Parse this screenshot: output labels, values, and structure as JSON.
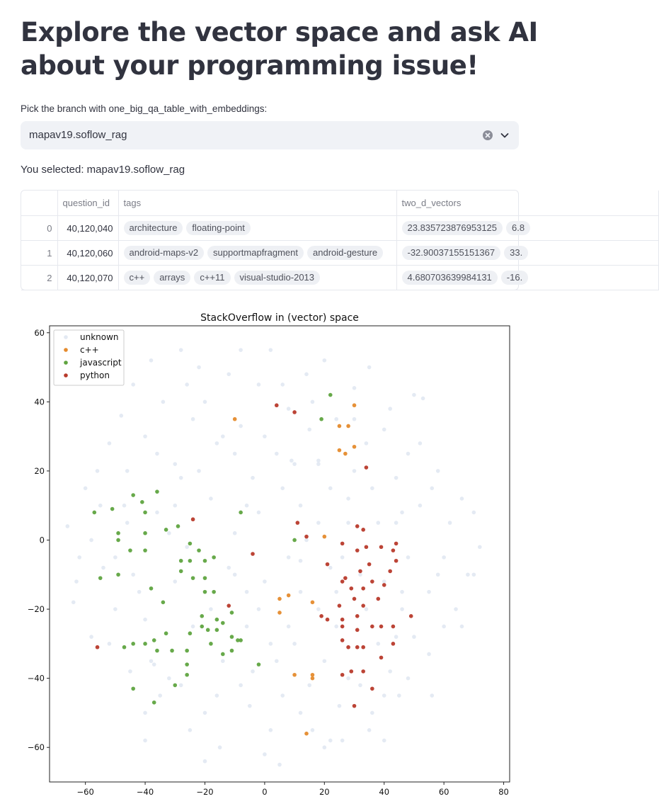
{
  "page": {
    "title": "Explore the vector space and ask AI about your programming issue!",
    "select_label": "Pick the branch with one_big_qa_table_with_embeddings:",
    "select_value": "mapav19.soflow_rag",
    "selected_text": "You selected: mapav19.soflow_rag"
  },
  "icons": {
    "clear": "clear-circle-icon",
    "dropdown": "chevron-down-icon"
  },
  "table": {
    "columns": [
      "",
      "question_id",
      "tags",
      "two_d_vectors"
    ],
    "rows": [
      {
        "index": "0",
        "question_id": "40,120,040",
        "tags": [
          "architecture",
          "floating-point"
        ],
        "vectors": [
          "23.835723876953125",
          "6.8"
        ]
      },
      {
        "index": "1",
        "question_id": "40,120,060",
        "tags": [
          "android-maps-v2",
          "supportmapfragment",
          "android-gesture"
        ],
        "vectors": [
          "-32.90037155151367",
          "33."
        ]
      },
      {
        "index": "2",
        "question_id": "40,120,070",
        "tags": [
          "c++",
          "arrays",
          "c++11",
          "visual-studio-2013"
        ],
        "vectors": [
          "4.680703639984131",
          "-16."
        ]
      }
    ]
  },
  "chart_data": {
    "type": "scatter",
    "title": "StackOverflow in (vector) space",
    "xlim": [
      -72,
      82
    ],
    "ylim": [
      -70,
      62
    ],
    "xticks": [
      -60,
      -40,
      -20,
      0,
      20,
      40,
      60,
      80
    ],
    "yticks": [
      -60,
      -40,
      -20,
      0,
      20,
      40,
      60
    ],
    "grid": false,
    "legend": "top-left",
    "series": [
      {
        "name": "unknown",
        "color": "#e3e9f2",
        "points": [
          [
            -66,
            4
          ],
          [
            -63,
            -12
          ],
          [
            -60,
            15
          ],
          [
            -58,
            -28
          ],
          [
            -55,
            10
          ],
          [
            -52,
            28
          ],
          [
            -50,
            -5
          ],
          [
            -48,
            36
          ],
          [
            -46,
            20
          ],
          [
            -44,
            45
          ],
          [
            -42,
            -15
          ],
          [
            -40,
            30
          ],
          [
            -38,
            52
          ],
          [
            -36,
            8
          ],
          [
            -34,
            40
          ],
          [
            -32,
            -40
          ],
          [
            -30,
            22
          ],
          [
            -28,
            55
          ],
          [
            -26,
            -2
          ],
          [
            -24,
            35
          ],
          [
            -22,
            50
          ],
          [
            -20,
            -50
          ],
          [
            -18,
            12
          ],
          [
            -16,
            28
          ],
          [
            -14,
            -35
          ],
          [
            -12,
            48
          ],
          [
            -10,
            2
          ],
          [
            -8,
            33
          ],
          [
            -6,
            -25
          ],
          [
            -4,
            18
          ],
          [
            -2,
            45
          ],
          [
            0,
            -12
          ],
          [
            2,
            55
          ],
          [
            4,
            25
          ],
          [
            6,
            -45
          ],
          [
            8,
            38
          ],
          [
            10,
            -30
          ],
          [
            12,
            10
          ],
          [
            14,
            48
          ],
          [
            16,
            -55
          ],
          [
            18,
            22
          ],
          [
            20,
            52
          ],
          [
            22,
            -8
          ],
          [
            24,
            35
          ],
          [
            26,
            -58
          ],
          [
            28,
            12
          ],
          [
            30,
            44
          ],
          [
            32,
            -10
          ],
          [
            34,
            28
          ],
          [
            36,
            -50
          ],
          [
            38,
            5
          ],
          [
            40,
            32
          ],
          [
            42,
            -38
          ],
          [
            44,
            18
          ],
          [
            46,
            -20
          ],
          [
            48,
            25
          ],
          [
            50,
            -28
          ],
          [
            52,
            10
          ],
          [
            55,
            -15
          ],
          [
            58,
            20
          ],
          [
            60,
            -5
          ],
          [
            62,
            5
          ],
          [
            64,
            -20
          ],
          [
            66,
            12
          ],
          [
            68,
            -10
          ],
          [
            70,
            8
          ],
          [
            72,
            -2
          ],
          [
            -50,
            -20
          ],
          [
            -45,
            -38
          ],
          [
            -35,
            -45
          ],
          [
            -25,
            -55
          ],
          [
            -15,
            -60
          ],
          [
            -5,
            -48
          ],
          [
            5,
            -65
          ],
          [
            15,
            -42
          ],
          [
            25,
            -48
          ],
          [
            35,
            -55
          ],
          [
            45,
            -45
          ],
          [
            55,
            -33
          ],
          [
            -38,
            -35
          ],
          [
            -28,
            18
          ],
          [
            -12,
            -8
          ],
          [
            8,
            -5
          ],
          [
            18,
            -20
          ],
          [
            28,
            5
          ],
          [
            38,
            -30
          ],
          [
            48,
            -5
          ],
          [
            -62,
            -5
          ],
          [
            -56,
            20
          ],
          [
            -44,
            -10
          ],
          [
            -32,
            2
          ],
          [
            -20,
            40
          ],
          [
            -8,
            55
          ],
          [
            6,
            45
          ],
          [
            16,
            40
          ],
          [
            30,
            35
          ],
          [
            42,
            38
          ],
          [
            50,
            42
          ],
          [
            -40,
            -23
          ],
          [
            0,
            30
          ],
          [
            12,
            -15
          ],
          [
            24,
            -25
          ],
          [
            36,
            15
          ],
          [
            -16,
            -45
          ],
          [
            4,
            -35
          ],
          [
            20,
            -35
          ],
          [
            32,
            -42
          ],
          [
            -24,
            -25
          ],
          [
            -6,
            10
          ],
          [
            14,
            0
          ],
          [
            -2,
            -20
          ],
          [
            10,
            22
          ],
          [
            22,
            15
          ],
          [
            40,
            -12
          ],
          [
            52,
            28
          ],
          [
            -58,
            0
          ],
          [
            -46,
            5
          ],
          [
            -30,
            -12
          ],
          [
            -18,
            -20
          ],
          [
            -4,
            -38
          ],
          [
            2,
            -55
          ],
          [
            26,
            -5
          ],
          [
            46,
            8
          ],
          [
            56,
            15
          ],
          [
            60,
            -25
          ],
          [
            -36,
            25
          ],
          [
            -26,
            45
          ],
          [
            -10,
            25
          ],
          [
            6,
            15
          ],
          [
            18,
            5
          ],
          [
            34,
            -20
          ],
          [
            44,
            -28
          ],
          [
            53,
            41
          ],
          [
            -37,
            -36
          ],
          [
            9,
            23
          ],
          [
            12,
            -6
          ],
          [
            18,
            23
          ],
          [
            -14,
            30
          ],
          [
            -2,
            8
          ],
          [
            30,
            20
          ],
          [
            44,
            5
          ],
          [
            58,
            -10
          ],
          [
            -54,
            -8
          ],
          [
            -22,
            20
          ],
          [
            2,
            -30
          ],
          [
            28,
            -40
          ],
          [
            48,
            -40
          ],
          [
            66,
            -25
          ],
          [
            -64,
            -18
          ],
          [
            -52,
            -30
          ],
          [
            -40,
            -50
          ],
          [
            -28,
            -42
          ],
          [
            -8,
            -42
          ],
          [
            12,
            -50
          ],
          [
            22,
            -58
          ],
          [
            40,
            -45
          ],
          [
            56,
            -45
          ],
          [
            -47,
            10
          ],
          [
            -10,
            -10
          ],
          [
            8,
            -25
          ],
          [
            24,
            -15
          ],
          [
            46,
            -15
          ],
          [
            70,
            -10
          ],
          [
            -30,
            10
          ],
          [
            -6,
            -15
          ],
          [
            15,
            32
          ],
          [
            35,
            50
          ],
          [
            -40,
            -58
          ],
          [
            -20,
            -64
          ],
          [
            0,
            -62
          ],
          [
            20,
            -60
          ],
          [
            40,
            -58
          ]
        ]
      },
      {
        "name": "c++",
        "color": "#e58b2d",
        "points": [
          [
            -10,
            35
          ],
          [
            25,
            33
          ],
          [
            28,
            33
          ],
          [
            30,
            39
          ],
          [
            25,
            26
          ],
          [
            27,
            25
          ],
          [
            30,
            27
          ],
          [
            20,
            1
          ],
          [
            5,
            -17
          ],
          [
            8,
            -16
          ],
          [
            5,
            -21
          ],
          [
            16,
            -18
          ],
          [
            10,
            -39
          ],
          [
            16,
            -39
          ],
          [
            16,
            -40
          ],
          [
            14,
            -56
          ]
        ]
      },
      {
        "name": "javascript",
        "color": "#5fa440",
        "points": [
          [
            -57,
            8
          ],
          [
            -51,
            9
          ],
          [
            -44,
            13
          ],
          [
            -41,
            11
          ],
          [
            -36,
            14
          ],
          [
            -40,
            8
          ],
          [
            -49,
            2
          ],
          [
            -49,
            0
          ],
          [
            -45,
            -3
          ],
          [
            -40,
            -3
          ],
          [
            -40,
            2
          ],
          [
            -33,
            3
          ],
          [
            -29,
            4
          ],
          [
            -8,
            8
          ],
          [
            10,
            0
          ],
          [
            -55,
            -11
          ],
          [
            -49,
            -10
          ],
          [
            -38,
            -14
          ],
          [
            -34,
            -18
          ],
          [
            -28,
            -6
          ],
          [
            -28,
            -9
          ],
          [
            -25,
            -1
          ],
          [
            -25,
            -6
          ],
          [
            -22,
            -3
          ],
          [
            -20,
            -6
          ],
          [
            -17,
            -5
          ],
          [
            -20,
            -11
          ],
          [
            -20,
            -15
          ],
          [
            -17,
            -15
          ],
          [
            -24,
            -11
          ],
          [
            -21,
            -22
          ],
          [
            -16,
            -23
          ],
          [
            -19,
            -26
          ],
          [
            -14,
            -24
          ],
          [
            -11,
            -21
          ],
          [
            -21,
            -25
          ],
          [
            -16,
            -26
          ],
          [
            -11,
            -28
          ],
          [
            -9,
            -29
          ],
          [
            -8,
            -29
          ],
          [
            -11,
            -32
          ],
          [
            -25,
            -27
          ],
          [
            -33,
            -27
          ],
          [
            -36,
            -32
          ],
          [
            -31,
            -32
          ],
          [
            -26,
            -32
          ],
          [
            -18,
            -30
          ],
          [
            -14,
            -33
          ],
          [
            -26,
            -36
          ],
          [
            -26,
            -39
          ],
          [
            -30,
            -42
          ],
          [
            -2,
            -36
          ],
          [
            -44,
            -30
          ],
          [
            -40,
            -30
          ],
          [
            -37,
            -29
          ],
          [
            -47,
            -31
          ],
          [
            -44,
            -43
          ],
          [
            -37,
            -47
          ],
          [
            22,
            42
          ],
          [
            19,
            35
          ]
        ]
      },
      {
        "name": "python",
        "color": "#b83a2b",
        "points": [
          [
            -24,
            6
          ],
          [
            4,
            39
          ],
          [
            10,
            37
          ],
          [
            34,
            21
          ],
          [
            -4,
            -4
          ],
          [
            11,
            5
          ],
          [
            14,
            1
          ],
          [
            26,
            -1
          ],
          [
            31,
            4
          ],
          [
            33,
            3
          ],
          [
            21,
            -7
          ],
          [
            27,
            -11
          ],
          [
            31,
            -3
          ],
          [
            34,
            -2
          ],
          [
            39,
            -2
          ],
          [
            44,
            -1
          ],
          [
            43,
            -3
          ],
          [
            44,
            -6
          ],
          [
            32,
            -9
          ],
          [
            35,
            -7
          ],
          [
            42,
            -9
          ],
          [
            26,
            -12
          ],
          [
            29,
            -14
          ],
          [
            33,
            -14
          ],
          [
            36,
            -12
          ],
          [
            40,
            -13
          ],
          [
            25,
            -19
          ],
          [
            30,
            -17
          ],
          [
            33,
            -19
          ],
          [
            38,
            -17
          ],
          [
            -12,
            -19
          ],
          [
            19,
            -22
          ],
          [
            21,
            -23
          ],
          [
            26,
            -23
          ],
          [
            31,
            -22
          ],
          [
            36,
            -25
          ],
          [
            39,
            -25
          ],
          [
            43,
            -25
          ],
          [
            26,
            -25
          ],
          [
            31,
            -26
          ],
          [
            49,
            -22
          ],
          [
            26,
            -29
          ],
          [
            28,
            -31
          ],
          [
            31,
            -31
          ],
          [
            33,
            -31
          ],
          [
            39,
            -34
          ],
          [
            43,
            -30
          ],
          [
            26,
            -39
          ],
          [
            29,
            -38
          ],
          [
            33,
            -38
          ],
          [
            36,
            -43
          ],
          [
            30,
            -48
          ],
          [
            -56,
            -31
          ]
        ]
      }
    ]
  }
}
